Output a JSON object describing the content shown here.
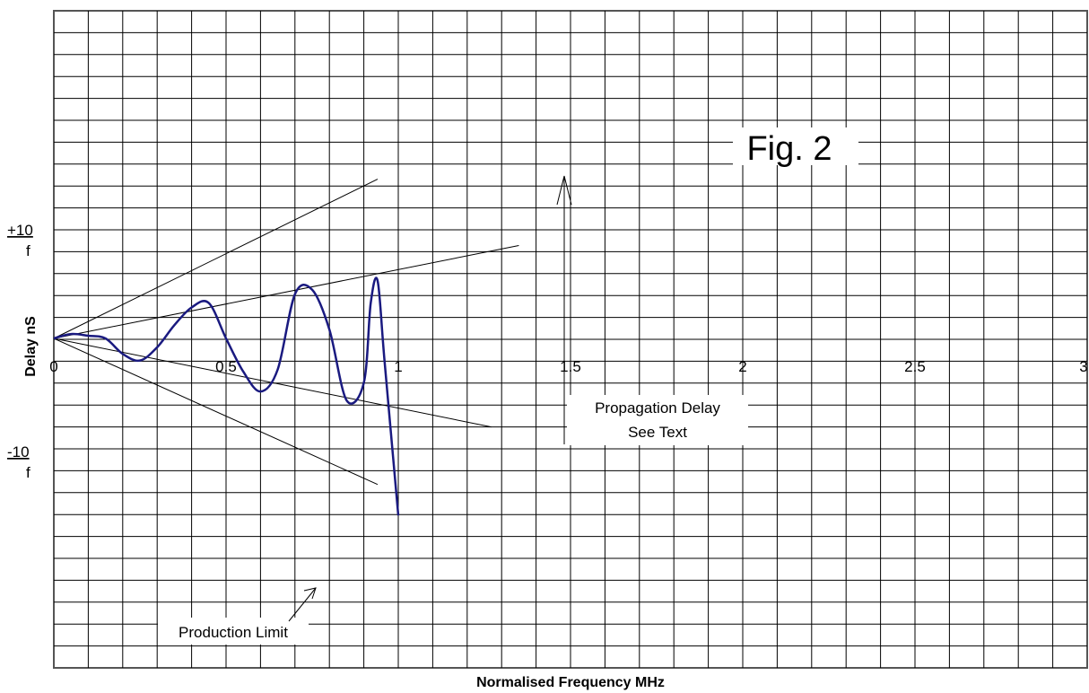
{
  "chart_data": {
    "type": "line",
    "title": "",
    "xlabel": "Normalised Frequency MHz",
    "ylabel": "Delay nS",
    "xlim": [
      0,
      3
    ],
    "x_ticks": [
      0,
      0.5,
      1,
      1.5,
      2,
      2.5,
      3
    ],
    "x_tick_labels": [
      "0",
      "0.5",
      "1",
      "1.5",
      "2",
      "2.5",
      "3"
    ],
    "y_tick_labels": {
      "upper": {
        "sign_value": "+10",
        "denominator": "f"
      },
      "lower": {
        "sign_value": "-10",
        "denominator": "f"
      }
    },
    "grid": true,
    "series": [
      {
        "color": "#1a1a80",
        "x": [
          0,
          0.05,
          0.1,
          0.15,
          0.2,
          0.25,
          0.3,
          0.35,
          0.4,
          0.45,
          0.5,
          0.55,
          0.6,
          0.65,
          0.7,
          0.75,
          0.8,
          0.85,
          0.9,
          0.92,
          0.94,
          0.96,
          1.0
        ],
        "y": [
          0,
          1,
          0.6,
          0,
          -3.5,
          -5,
          -2,
          3,
          7,
          8,
          0,
          -7.5,
          -12,
          -7,
          10,
          11,
          2,
          -14,
          -10,
          8,
          13,
          -5,
          -40
        ]
      }
    ],
    "limit_lines": [
      {
        "name": "Production Limit",
        "x": [
          0,
          0.94
        ],
        "y": [
          0,
          36
        ]
      },
      {
        "x": [
          0,
          1.35
        ],
        "y": [
          0,
          21
        ]
      },
      {
        "x": [
          0,
          1.27
        ],
        "y": [
          0,
          -20
        ]
      },
      {
        "x": [
          0,
          0.94
        ],
        "y": [
          0,
          -33
        ]
      }
    ],
    "annotations": {
      "figure_label": "Fig. 2",
      "propagation_line1": "Propagation Delay",
      "propagation_line2": "See Text",
      "production_limit": "Production Limit"
    }
  }
}
